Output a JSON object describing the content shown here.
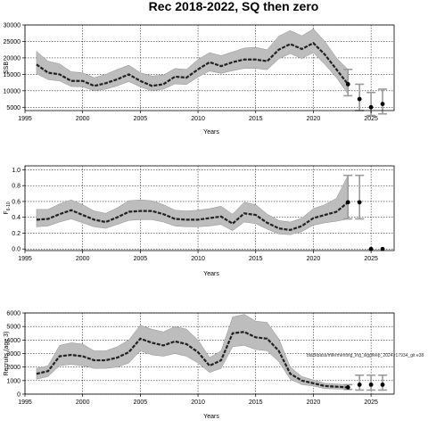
{
  "figure": {
    "title": "Rec 2018-2022, SQ then zero"
  },
  "chart_data": [
    {
      "type": "line",
      "title": "",
      "xlabel": "Years",
      "ylabel": "SSB",
      "ylabel_sub": "",
      "xlim": [
        1995,
        2027
      ],
      "ylim": [
        4000,
        30000
      ],
      "xticks": [
        1995,
        2000,
        2005,
        2010,
        2015,
        2020,
        2025
      ],
      "yticks": [
        5000,
        10000,
        15000,
        20000,
        25000,
        30000
      ],
      "grid": true,
      "band_color": "#bdbdbd",
      "line_color": "#222222",
      "x": [
        1996,
        1997,
        1998,
        1999,
        2000,
        2001,
        2002,
        2003,
        2004,
        2005,
        2006,
        2007,
        2008,
        2009,
        2010,
        2011,
        2012,
        2013,
        2014,
        2015,
        2016,
        2017,
        2018,
        2019,
        2020,
        2021,
        2022,
        2023
      ],
      "series": [
        {
          "role": "estimate",
          "values": [
            18000,
            15500,
            15000,
            13000,
            13000,
            11500,
            12300,
            13500,
            15000,
            13000,
            11500,
            12000,
            14300,
            14000,
            16500,
            18700,
            17500,
            18700,
            19500,
            19500,
            19000,
            22500,
            24200,
            22700,
            24500,
            21000,
            16500,
            12000
          ]
        },
        {
          "role": "upper",
          "values": [
            22000,
            19000,
            18200,
            15800,
            15500,
            14000,
            15000,
            16500,
            17800,
            15500,
            14500,
            14800,
            16800,
            16500,
            19500,
            21600,
            20700,
            21800,
            23000,
            23200,
            22500,
            26600,
            28300,
            26700,
            28800,
            25000,
            20000,
            16500
          ]
        },
        {
          "role": "lower",
          "values": [
            15200,
            13400,
            13000,
            11300,
            11200,
            10000,
            10500,
            11500,
            12800,
            11200,
            10000,
            10500,
            12100,
            11900,
            14200,
            16000,
            15300,
            16100,
            16800,
            16800,
            16400,
            19700,
            21300,
            19800,
            21600,
            18000,
            14000,
            9000
          ]
        }
      ],
      "projection": {
        "x": [
          2023,
          2024,
          2025,
          2026
        ],
        "values": [
          12000,
          7500,
          5000,
          6000
        ],
        "upper": [
          16500,
          12000,
          9500,
          10500
        ],
        "lower": [
          8500,
          4000,
          2500,
          3000
        ]
      },
      "annotation": ""
    },
    {
      "type": "line",
      "title": "",
      "xlabel": "Years",
      "ylabel": "F",
      "ylabel_sub": "6-10",
      "xlim": [
        1995,
        2027
      ],
      "ylim": [
        -0.02,
        1.05
      ],
      "xticks": [
        1995,
        2000,
        2005,
        2010,
        2015,
        2020,
        2025
      ],
      "yticks": [
        0.0,
        0.2,
        0.4,
        0.6,
        0.8,
        1.0
      ],
      "ytick_labels": [
        "0.0",
        "0.2",
        "0.4",
        "0.6",
        "0.8",
        "1.0"
      ],
      "grid": true,
      "band_color": "#bdbdbd",
      "line_color": "#222222",
      "x": [
        1996,
        1997,
        1998,
        1999,
        2000,
        2001,
        2002,
        2003,
        2004,
        2005,
        2006,
        2007,
        2008,
        2009,
        2010,
        2011,
        2012,
        2013,
        2014,
        2015,
        2016,
        2017,
        2018,
        2019,
        2020,
        2021,
        2022,
        2023
      ],
      "series": [
        {
          "role": "estimate",
          "values": [
            0.37,
            0.38,
            0.44,
            0.49,
            0.43,
            0.37,
            0.34,
            0.4,
            0.47,
            0.48,
            0.48,
            0.44,
            0.38,
            0.37,
            0.37,
            0.39,
            0.41,
            0.32,
            0.45,
            0.43,
            0.33,
            0.26,
            0.24,
            0.29,
            0.39,
            0.43,
            0.47,
            0.59
          ]
        },
        {
          "role": "upper",
          "values": [
            0.5,
            0.5,
            0.57,
            0.62,
            0.56,
            0.48,
            0.45,
            0.52,
            0.61,
            0.62,
            0.61,
            0.56,
            0.49,
            0.48,
            0.49,
            0.51,
            0.54,
            0.44,
            0.59,
            0.56,
            0.44,
            0.36,
            0.34,
            0.39,
            0.51,
            0.56,
            0.64,
            0.93
          ]
        },
        {
          "role": "lower",
          "values": [
            0.28,
            0.29,
            0.34,
            0.38,
            0.33,
            0.28,
            0.26,
            0.31,
            0.36,
            0.37,
            0.37,
            0.34,
            0.29,
            0.28,
            0.28,
            0.29,
            0.31,
            0.23,
            0.34,
            0.32,
            0.25,
            0.19,
            0.18,
            0.22,
            0.3,
            0.33,
            0.35,
            0.38
          ]
        }
      ],
      "projection": {
        "x": [
          2023,
          2024,
          2025,
          2026
        ],
        "values": [
          0.59,
          0.59,
          0.0,
          0.0
        ],
        "upper": [
          0.93,
          0.93,
          0.0,
          0.0
        ],
        "lower": [
          0.38,
          0.38,
          0.0,
          0.0
        ]
      },
      "annotation": ""
    },
    {
      "type": "line",
      "title": "",
      "xlabel": "Years",
      "ylabel": "Recruits (age 3)",
      "ylabel_sub": "",
      "xlim": [
        1995,
        2027
      ],
      "ylim": [
        0,
        6000
      ],
      "xticks": [
        1995,
        2000,
        2005,
        2010,
        2015,
        2020,
        2025
      ],
      "yticks": [
        0,
        1000,
        2000,
        3000,
        4000,
        5000,
        6000
      ],
      "grid": true,
      "band_color": "#bdbdbd",
      "line_color": "#222222",
      "x": [
        1996,
        1997,
        1998,
        1999,
        2000,
        2001,
        2002,
        2003,
        2004,
        2005,
        2006,
        2007,
        2008,
        2009,
        2010,
        2011,
        2012,
        2013,
        2014,
        2015,
        2016,
        2017,
        2018,
        2019,
        2020,
        2021,
        2022,
        2023
      ],
      "series": [
        {
          "role": "estimate",
          "values": [
            1500,
            1700,
            2800,
            2900,
            2800,
            2500,
            2500,
            2700,
            3100,
            4100,
            3800,
            3600,
            3900,
            3700,
            3100,
            2100,
            2500,
            4500,
            4600,
            4200,
            4100,
            3200,
            1500,
            1000,
            800,
            600,
            550,
            500
          ]
        },
        {
          "role": "upper",
          "values": [
            1900,
            2100,
            3600,
            3800,
            3700,
            3200,
            3200,
            3500,
            4000,
            5100,
            4800,
            4600,
            5000,
            4800,
            4000,
            2700,
            3200,
            5700,
            5900,
            5400,
            5300,
            4100,
            2000,
            1300,
            1050,
            800,
            750,
            700
          ]
        },
        {
          "role": "lower",
          "values": [
            1100,
            1300,
            2100,
            2200,
            2100,
            1900,
            1900,
            2000,
            2300,
            3200,
            2900,
            2800,
            3000,
            2800,
            2300,
            1600,
            1900,
            3500,
            3600,
            3300,
            3200,
            2400,
            1100,
            700,
            600,
            400,
            380,
            350
          ]
        }
      ],
      "projection": {
        "x": [
          2023,
          2024,
          2025,
          2026
        ],
        "values": [
          500,
          700,
          700,
          700
        ],
        "upper": [
          700,
          1400,
          1400,
          1400
        ],
        "lower": [
          350,
          300,
          300,
          300
        ]
      },
      "annotation": "blackbass/mfermenting_lng_siggfeep_2024.r17934_git e38"
    }
  ]
}
